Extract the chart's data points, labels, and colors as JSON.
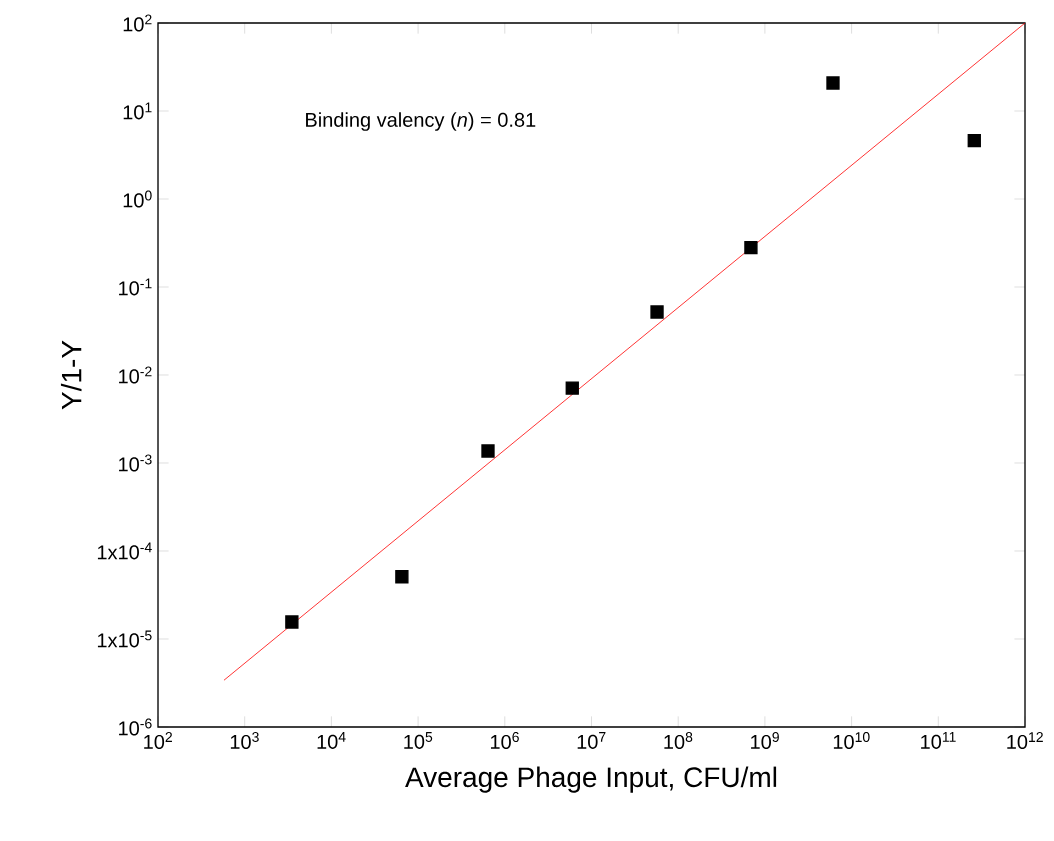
{
  "chart_data": {
    "type": "scatter",
    "xlabel": "Average Phage Input, CFU/ml",
    "ylabel": "Y/1-Y",
    "annotations": [
      "Binding valency (*n*) = 0.81"
    ],
    "log": "xy",
    "grid": false,
    "xlim": [
      100,
      1000000000000
    ],
    "ylim": [
      1e-06,
      100
    ],
    "xticks": [
      {
        "value": 100,
        "label": "10$^{2}$"
      },
      {
        "value": 1000,
        "label": "10$^{3}$"
      },
      {
        "value": 10000,
        "label": "10$^{4}$"
      },
      {
        "value": 100000,
        "label": "10$^{5}$"
      },
      {
        "value": 1000000,
        "label": "10$^{6}$"
      },
      {
        "value": 10000000,
        "label": "10$^{7}$"
      },
      {
        "value": 100000000,
        "label": "10$^{8}$"
      },
      {
        "value": 1000000000,
        "label": "10$^{9}$"
      },
      {
        "value": 10000000000,
        "label": "10$^{10}$"
      },
      {
        "value": 100000000000,
        "label": "10$^{11}$"
      },
      {
        "value": 1000000000000,
        "label": "10$^{12}$"
      }
    ],
    "yticks": [
      {
        "value": 1e-06,
        "label": "10$^{-6}$"
      },
      {
        "value": 1e-05,
        "label": "1x10$^{-5}$"
      },
      {
        "value": 0.0001,
        "label": "1x10$^{-4}$"
      },
      {
        "value": 0.001,
        "label": "10$^{-3}$"
      },
      {
        "value": 0.01,
        "label": "10$^{-2}$"
      },
      {
        "value": 0.1,
        "label": "10$^{-1}$"
      },
      {
        "value": 1,
        "label": "10$^{0}$"
      },
      {
        "value": 10,
        "label": "10$^{1}$"
      },
      {
        "value": 100,
        "label": "10$^{2}$"
      }
    ],
    "series": [
      {
        "marker": "square",
        "color": "#000000",
        "x": [
          3500,
          65000,
          640000,
          6000000,
          57000000,
          690000000,
          6100000000,
          260000000000
        ],
        "values": [
          1.56e-05,
          5.1e-05,
          0.00137,
          0.0071,
          0.052,
          0.28,
          20.8,
          4.6
        ]
      },
      {
        "type": "line",
        "marker": "none",
        "line_style": "solid",
        "color": "#ff0000",
        "x": [
          577,
          1000000000000
        ],
        "values": [
          3.4e-06,
          100
        ]
      }
    ]
  }
}
